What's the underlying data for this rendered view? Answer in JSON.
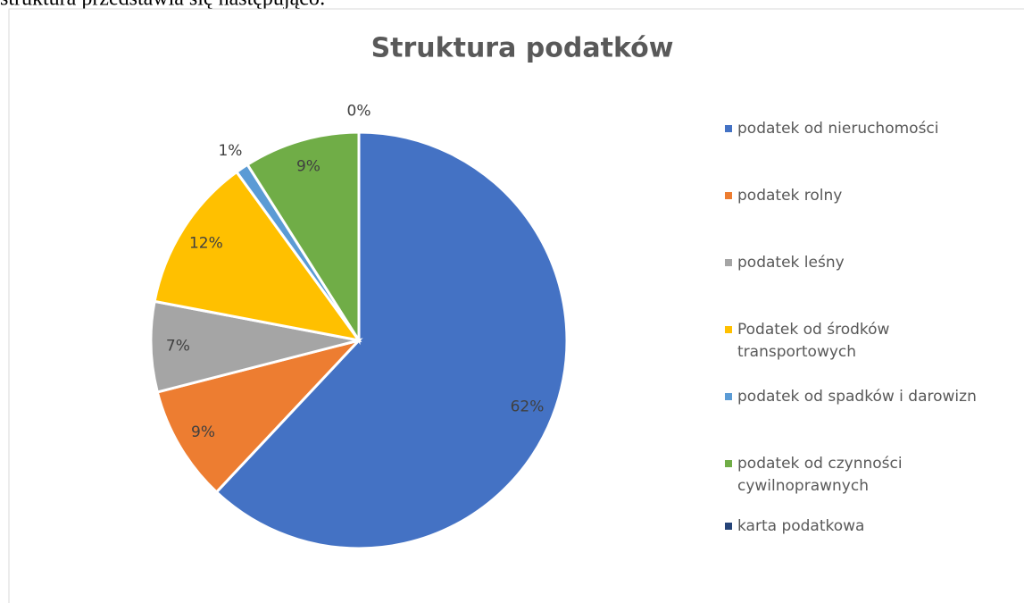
{
  "document": {
    "intro_text": "struktura przedstawia się następująco:"
  },
  "chart_data": {
    "type": "pie",
    "title": "Struktura podatków",
    "categories": [
      "podatek od nieruchomości",
      "podatek rolny",
      "podatek leśny",
      "Podatek od środków transportowych",
      "podatek od spadków i darowizn",
      "podatek od czynności cywilnoprawnych",
      "karta podatkowa"
    ],
    "values": [
      62,
      9,
      7,
      12,
      1,
      9,
      0
    ],
    "value_labels": [
      "62%",
      "9%",
      "7%",
      "12%",
      "1%",
      "9%",
      "0%"
    ],
    "colors": [
      "#4472c4",
      "#ed7d31",
      "#a5a5a5",
      "#ffc000",
      "#5b9bd5",
      "#70ad47",
      "#264478"
    ],
    "legend": "right"
  }
}
